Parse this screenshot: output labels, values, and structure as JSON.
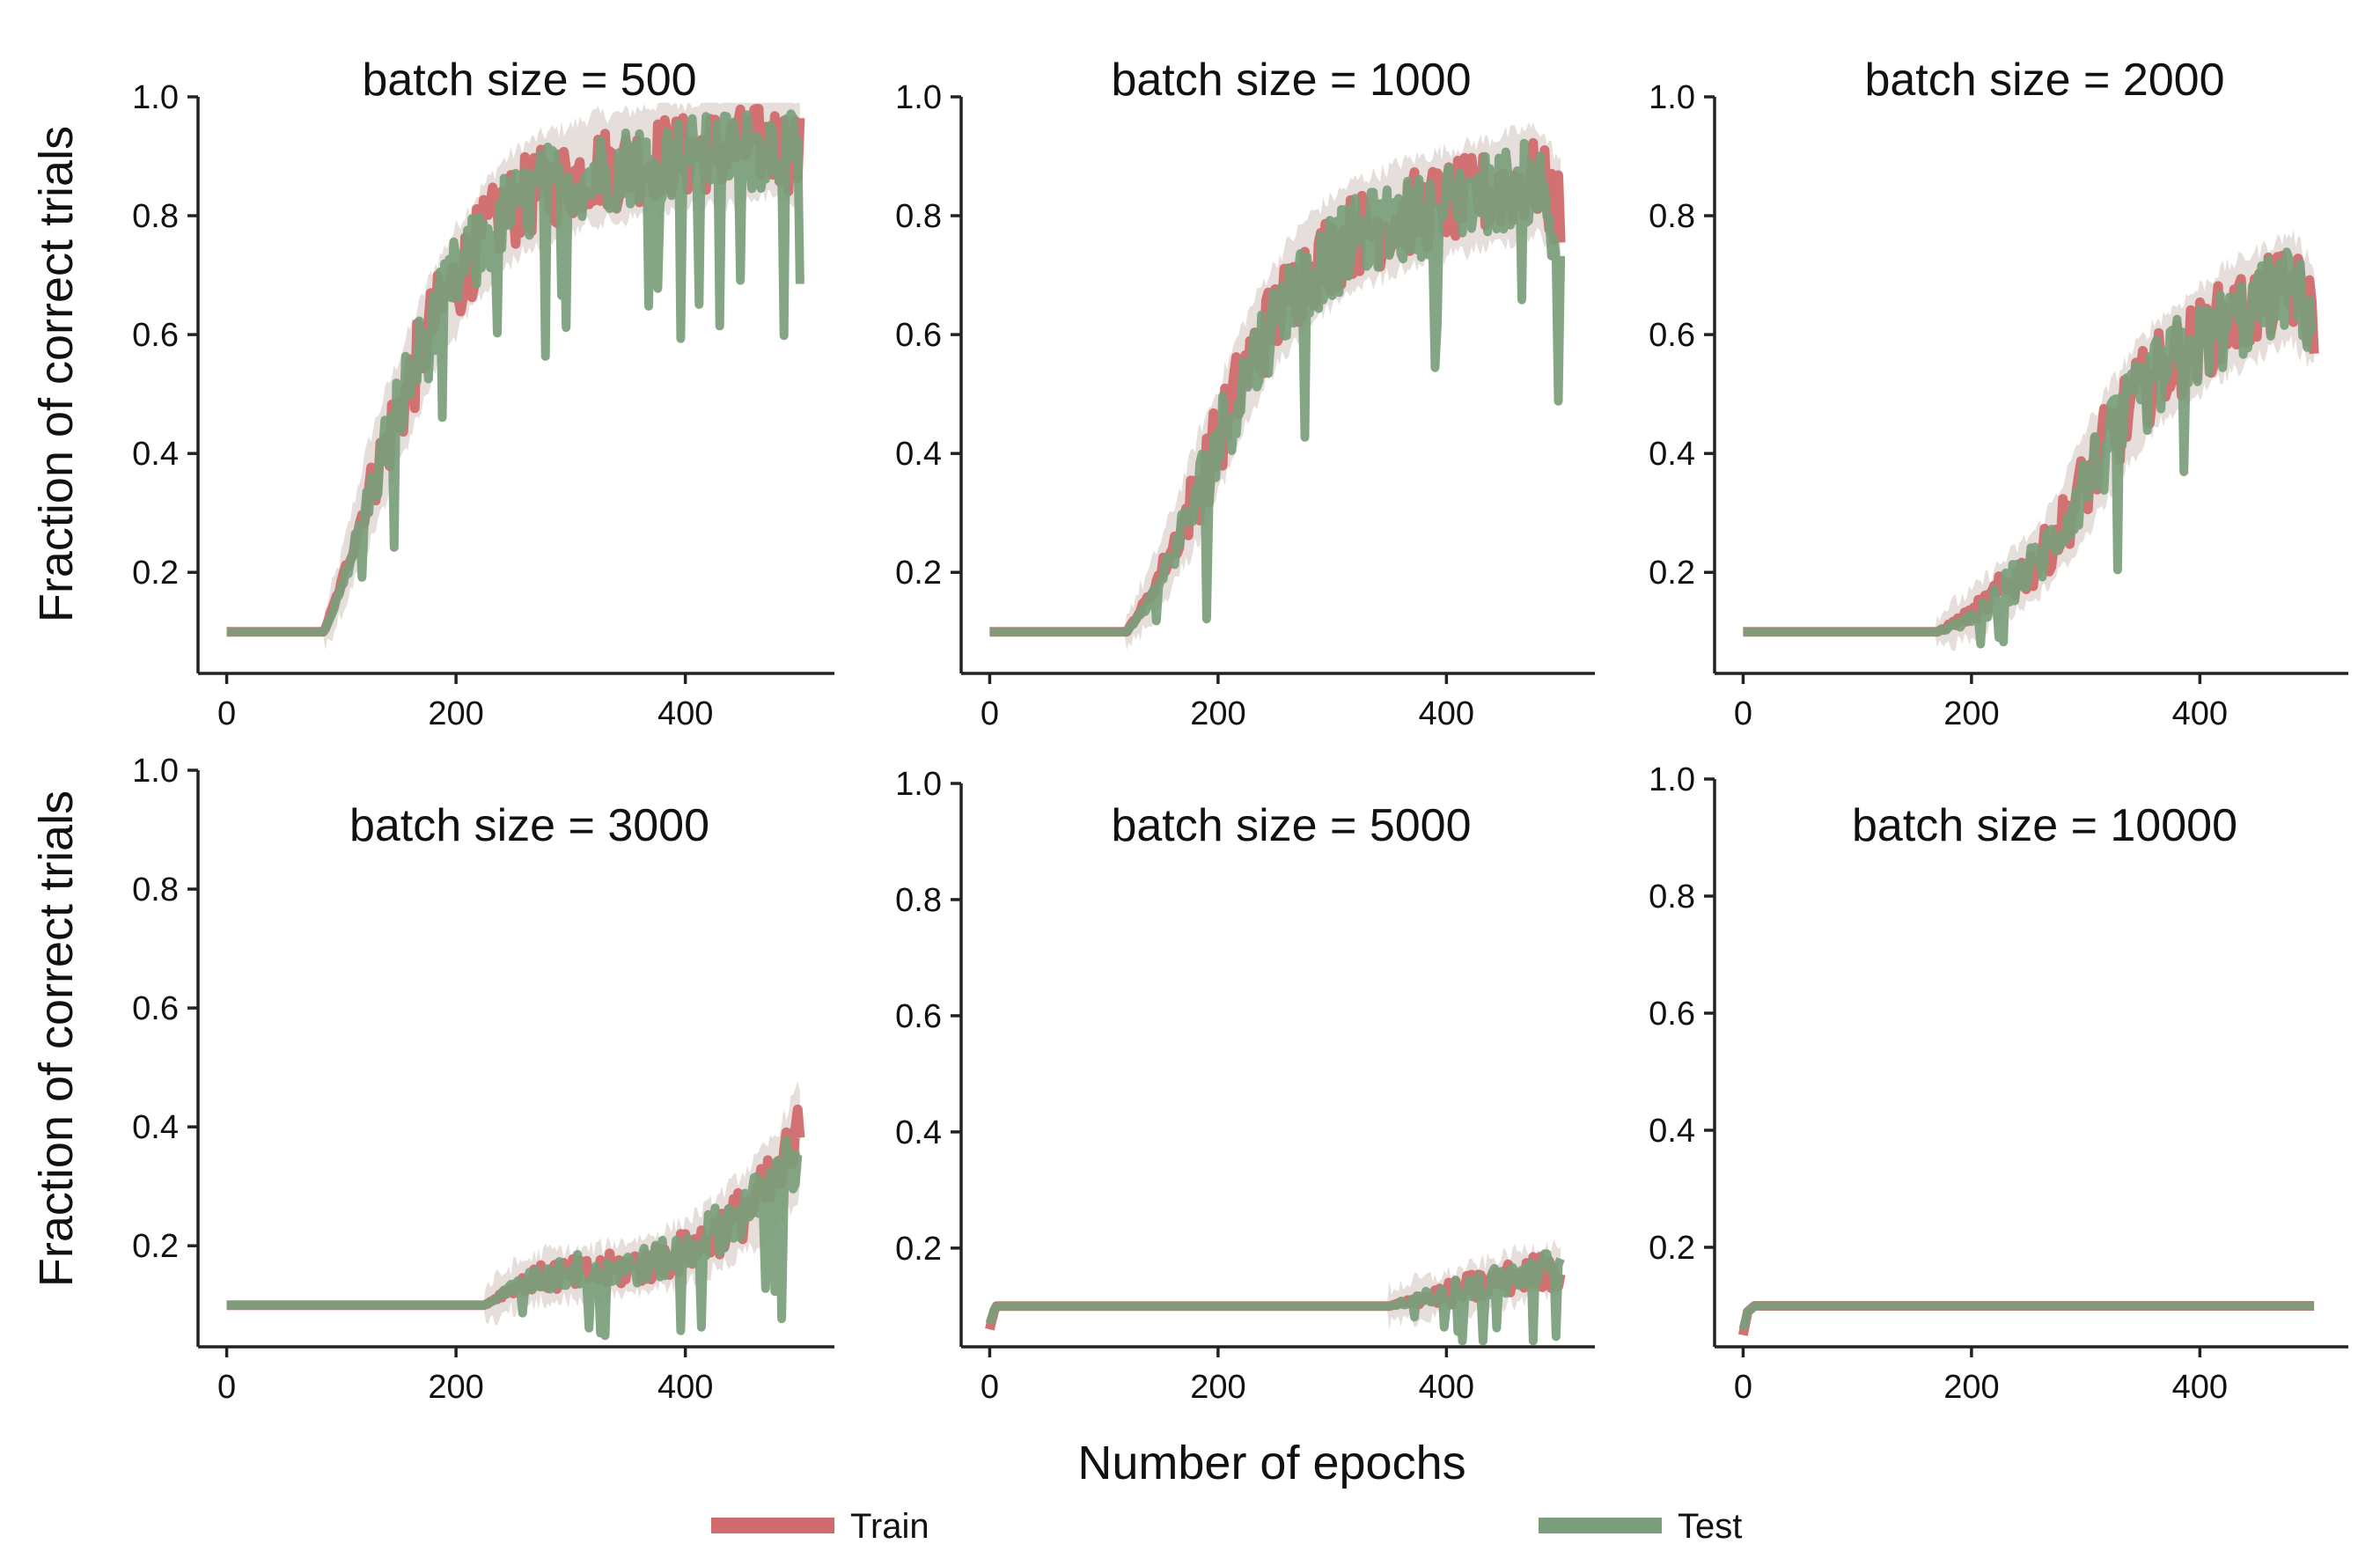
{
  "chart_data": {
    "type": "line",
    "ylabel": "Fraction of correct trials",
    "xlabel": "Number of epochs",
    "legend": [
      {
        "name": "Train",
        "color": "#d06a6c"
      },
      {
        "name": "Test",
        "color": "#7a9e7b"
      }
    ],
    "band_color": "#a08a7a",
    "panels": [
      {
        "title": "batch size = 500",
        "xlim": [
          -25,
          530
        ],
        "ylim": [
          0.03,
          1.0
        ],
        "xticks": [
          0,
          200,
          400
        ],
        "xtick_labels": [
          "0",
          "200",
          "400"
        ],
        "yticks": [
          0.2,
          0.4,
          0.6,
          0.8,
          1.0
        ],
        "ytick_labels": [
          "0.2",
          "0.4",
          "0.6",
          "0.8",
          "1.0"
        ],
        "series": [
          {
            "name": "Train",
            "x": [
              0,
              20,
              40,
              60,
              85,
              100,
              120,
              140,
              160,
              180,
              200,
              220,
              240,
              260,
              280,
              300,
              320,
              340,
              360,
              380,
              400,
              420,
              440,
              460,
              480,
              500
            ],
            "values": [
              0.1,
              0.1,
              0.1,
              0.1,
              0.1,
              0.18,
              0.31,
              0.42,
              0.52,
              0.62,
              0.69,
              0.75,
              0.8,
              0.83,
              0.85,
              0.86,
              0.88,
              0.88,
              0.89,
              0.9,
              0.9,
              0.91,
              0.91,
              0.92,
              0.92,
              0.9
            ]
          },
          {
            "name": "Test",
            "x": [
              0,
              20,
              40,
              60,
              85,
              100,
              120,
              140,
              160,
              180,
              200,
              220,
              240,
              260,
              280,
              300,
              320,
              340,
              360,
              380,
              400,
              420,
              440,
              460,
              480,
              500
            ],
            "values": [
              0.1,
              0.1,
              0.1,
              0.1,
              0.1,
              0.17,
              0.3,
              0.42,
              0.53,
              0.61,
              0.7,
              0.74,
              0.8,
              0.82,
              0.85,
              0.86,
              0.87,
              0.88,
              0.89,
              0.89,
              0.9,
              0.9,
              0.91,
              0.91,
              0.92,
              0.89
            ]
          }
        ]
      },
      {
        "title": "batch size = 1000",
        "xlim": [
          -25,
          530
        ],
        "ylim": [
          0.03,
          1.0
        ],
        "xticks": [
          0,
          200,
          400
        ],
        "xtick_labels": [
          "0",
          "200",
          "400"
        ],
        "yticks": [
          0.2,
          0.4,
          0.6,
          0.8,
          1.0
        ],
        "ytick_labels": [
          "0.2",
          "0.4",
          "0.6",
          "0.8",
          "1.0"
        ],
        "series": [
          {
            "name": "Train",
            "x": [
              0,
              40,
              80,
              120,
              140,
              160,
              180,
              200,
              220,
              240,
              260,
              280,
              300,
              320,
              340,
              360,
              380,
              400,
              420,
              440,
              460,
              480,
              500
            ],
            "values": [
              0.1,
              0.1,
              0.1,
              0.1,
              0.16,
              0.24,
              0.33,
              0.42,
              0.52,
              0.6,
              0.66,
              0.71,
              0.74,
              0.77,
              0.78,
              0.8,
              0.81,
              0.82,
              0.83,
              0.84,
              0.85,
              0.86,
              0.8
            ]
          },
          {
            "name": "Test",
            "x": [
              0,
              40,
              80,
              120,
              140,
              160,
              180,
              200,
              220,
              240,
              260,
              280,
              300,
              320,
              340,
              360,
              380,
              400,
              420,
              440,
              460,
              480,
              500
            ],
            "values": [
              0.1,
              0.1,
              0.1,
              0.1,
              0.15,
              0.23,
              0.32,
              0.42,
              0.51,
              0.59,
              0.66,
              0.7,
              0.73,
              0.76,
              0.78,
              0.79,
              0.8,
              0.82,
              0.83,
              0.84,
              0.85,
              0.86,
              0.72
            ]
          }
        ]
      },
      {
        "title": "batch size = 2000",
        "xlim": [
          -25,
          530
        ],
        "ylim": [
          0.03,
          1.0
        ],
        "xticks": [
          0,
          200,
          400
        ],
        "xtick_labels": [
          "0",
          "200",
          "400"
        ],
        "yticks": [
          0.2,
          0.4,
          0.6,
          0.8,
          1.0
        ],
        "ytick_labels": [
          "0.2",
          "0.4",
          "0.6",
          "0.8",
          "1.0"
        ],
        "series": [
          {
            "name": "Train",
            "x": [
              0,
              50,
              100,
              170,
              200,
              220,
              240,
              260,
              280,
              300,
              320,
              340,
              360,
              380,
              400,
              420,
              440,
              460,
              480,
              500
            ],
            "values": [
              0.1,
              0.1,
              0.1,
              0.1,
              0.13,
              0.16,
              0.19,
              0.22,
              0.28,
              0.35,
              0.42,
              0.48,
              0.53,
              0.56,
              0.59,
              0.62,
              0.64,
              0.66,
              0.68,
              0.63
            ]
          },
          {
            "name": "Test",
            "x": [
              0,
              50,
              100,
              170,
              200,
              220,
              240,
              260,
              280,
              300,
              320,
              340,
              360,
              380,
              400,
              420,
              440,
              460,
              480,
              500
            ],
            "values": [
              0.1,
              0.1,
              0.1,
              0.1,
              0.12,
              0.15,
              0.19,
              0.22,
              0.28,
              0.35,
              0.41,
              0.47,
              0.52,
              0.56,
              0.58,
              0.61,
              0.63,
              0.66,
              0.68,
              0.62
            ]
          }
        ]
      },
      {
        "title": "batch size = 3000",
        "xlim": [
          -25,
          530
        ],
        "ylim": [
          0.03,
          1.0
        ],
        "xticks": [
          0,
          200,
          400
        ],
        "xtick_labels": [
          "0",
          "200",
          "400"
        ],
        "yticks": [
          0.2,
          0.4,
          0.6,
          0.8,
          1.0
        ],
        "ytick_labels": [
          "0.2",
          "0.4",
          "0.6",
          "0.8",
          "1.0"
        ],
        "series": [
          {
            "name": "Train",
            "x": [
              0,
              50,
              100,
              150,
              200,
              225,
              250,
              280,
              310,
              340,
              370,
              400,
              420,
              440,
              460,
              480,
              500
            ],
            "values": [
              0.1,
              0.1,
              0.1,
              0.1,
              0.1,
              0.1,
              0.13,
              0.15,
              0.15,
              0.16,
              0.17,
              0.19,
              0.21,
              0.24,
              0.27,
              0.31,
              0.38
            ]
          },
          {
            "name": "Test",
            "x": [
              0,
              50,
              100,
              150,
              200,
              225,
              250,
              280,
              310,
              340,
              370,
              400,
              420,
              440,
              460,
              480,
              500
            ],
            "values": [
              0.1,
              0.1,
              0.1,
              0.1,
              0.1,
              0.1,
              0.13,
              0.15,
              0.16,
              0.16,
              0.17,
              0.19,
              0.22,
              0.24,
              0.27,
              0.31,
              0.36
            ]
          }
        ]
      },
      {
        "title": "batch size = 5000",
        "xlim": [
          -25,
          530
        ],
        "ylim": [
          0.03,
          1.0
        ],
        "xticks": [
          0,
          200,
          400
        ],
        "xtick_labels": [
          "0",
          "200",
          "400"
        ],
        "yticks": [
          0.2,
          0.4,
          0.6,
          0.8,
          1.0
        ],
        "ytick_labels": [
          "0.2",
          "0.4",
          "0.6",
          "0.8",
          "1.0"
        ],
        "series": [
          {
            "name": "Train",
            "x": [
              0,
              5,
              50,
              100,
              150,
              200,
              250,
              300,
              350,
              370,
              400,
              420,
              440,
              460,
              480,
              500
            ],
            "values": [
              0.06,
              0.1,
              0.1,
              0.1,
              0.1,
              0.1,
              0.1,
              0.1,
              0.1,
              0.11,
              0.12,
              0.13,
              0.14,
              0.15,
              0.16,
              0.16
            ]
          },
          {
            "name": "Test",
            "x": [
              0,
              5,
              50,
              100,
              150,
              200,
              250,
              300,
              350,
              370,
              400,
              420,
              440,
              460,
              480,
              500
            ],
            "values": [
              0.07,
              0.1,
              0.1,
              0.1,
              0.1,
              0.1,
              0.1,
              0.1,
              0.1,
              0.11,
              0.12,
              0.13,
              0.14,
              0.15,
              0.16,
              0.17
            ]
          }
        ]
      },
      {
        "title": "batch size = 10000",
        "xlim": [
          -25,
          530
        ],
        "ylim": [
          0.03,
          1.0
        ],
        "xticks": [
          0,
          200,
          400
        ],
        "xtick_labels": [
          "0",
          "200",
          "400"
        ],
        "yticks": [
          0.2,
          0.4,
          0.6,
          0.8,
          1.0
        ],
        "ytick_labels": [
          "0.2",
          "0.4",
          "0.6",
          "0.8",
          "1.0"
        ],
        "series": [
          {
            "name": "Train",
            "x": [
              0,
              4,
              10,
              50,
              100,
              200,
              300,
              400,
              500
            ],
            "values": [
              0.05,
              0.09,
              0.1,
              0.1,
              0.1,
              0.1,
              0.1,
              0.1,
              0.1
            ]
          },
          {
            "name": "Test",
            "x": [
              0,
              4,
              10,
              50,
              100,
              200,
              300,
              400,
              500
            ],
            "values": [
              0.06,
              0.09,
              0.1,
              0.1,
              0.1,
              0.1,
              0.1,
              0.1,
              0.1
            ]
          }
        ]
      }
    ]
  }
}
